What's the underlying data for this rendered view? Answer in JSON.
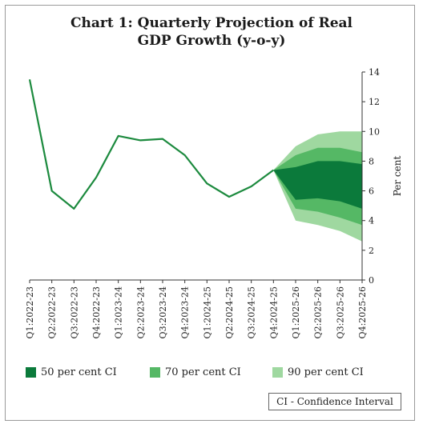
{
  "title_line1": "Chart 1: Quarterly Projection of Real",
  "title_line2": "GDP Growth (y-o-y)",
  "note": "CI - Confidence Interval",
  "legend": [
    {
      "label": "50 per cent CI",
      "color": "#0b7a3b"
    },
    {
      "label": "70 per cent CI",
      "color": "#55b865"
    },
    {
      "label": "90 per cent CI",
      "color": "#9fd8a0"
    }
  ],
  "colors": {
    "line": "#1c8a3e",
    "axis": "#333333"
  },
  "chart_data": {
    "type": "line",
    "ylabel": "Per cent",
    "ylim": [
      0,
      14
    ],
    "yticks": [
      0,
      2,
      4,
      6,
      8,
      10,
      12,
      14
    ],
    "categories": [
      "Q1:2022-23",
      "Q2:2022-23",
      "Q3:2022-23",
      "Q4:2022-23",
      "Q1:2023-24",
      "Q2:2023-24",
      "Q3:2023-24",
      "Q4:2023-24",
      "Q1:2024-25",
      "Q2:2024-25",
      "Q3:2024-25",
      "Q4:2024-25",
      "Q1:2025-26",
      "Q2:2025-26",
      "Q3:2025-26",
      "Q4:2025-26"
    ],
    "series": [
      {
        "values": [
          13.5,
          6.0,
          4.8,
          6.9,
          9.7,
          9.4,
          9.5,
          8.4,
          6.5,
          5.6,
          6.3,
          7.4,
          null,
          null,
          null,
          null
        ]
      }
    ],
    "fan_bands": {
      "start_index": 11,
      "ci90": {
        "upper": [
          7.4,
          9.0,
          9.8,
          10.0,
          10.0
        ],
        "lower": [
          7.4,
          4.0,
          3.7,
          3.3,
          2.6
        ]
      },
      "ci70": {
        "upper": [
          7.4,
          8.4,
          8.9,
          8.9,
          8.6
        ],
        "lower": [
          7.4,
          4.8,
          4.6,
          4.2,
          3.7
        ]
      },
      "ci50": {
        "upper": [
          7.4,
          7.6,
          8.0,
          8.0,
          7.8
        ],
        "lower": [
          7.4,
          5.4,
          5.5,
          5.3,
          4.8
        ]
      }
    }
  }
}
